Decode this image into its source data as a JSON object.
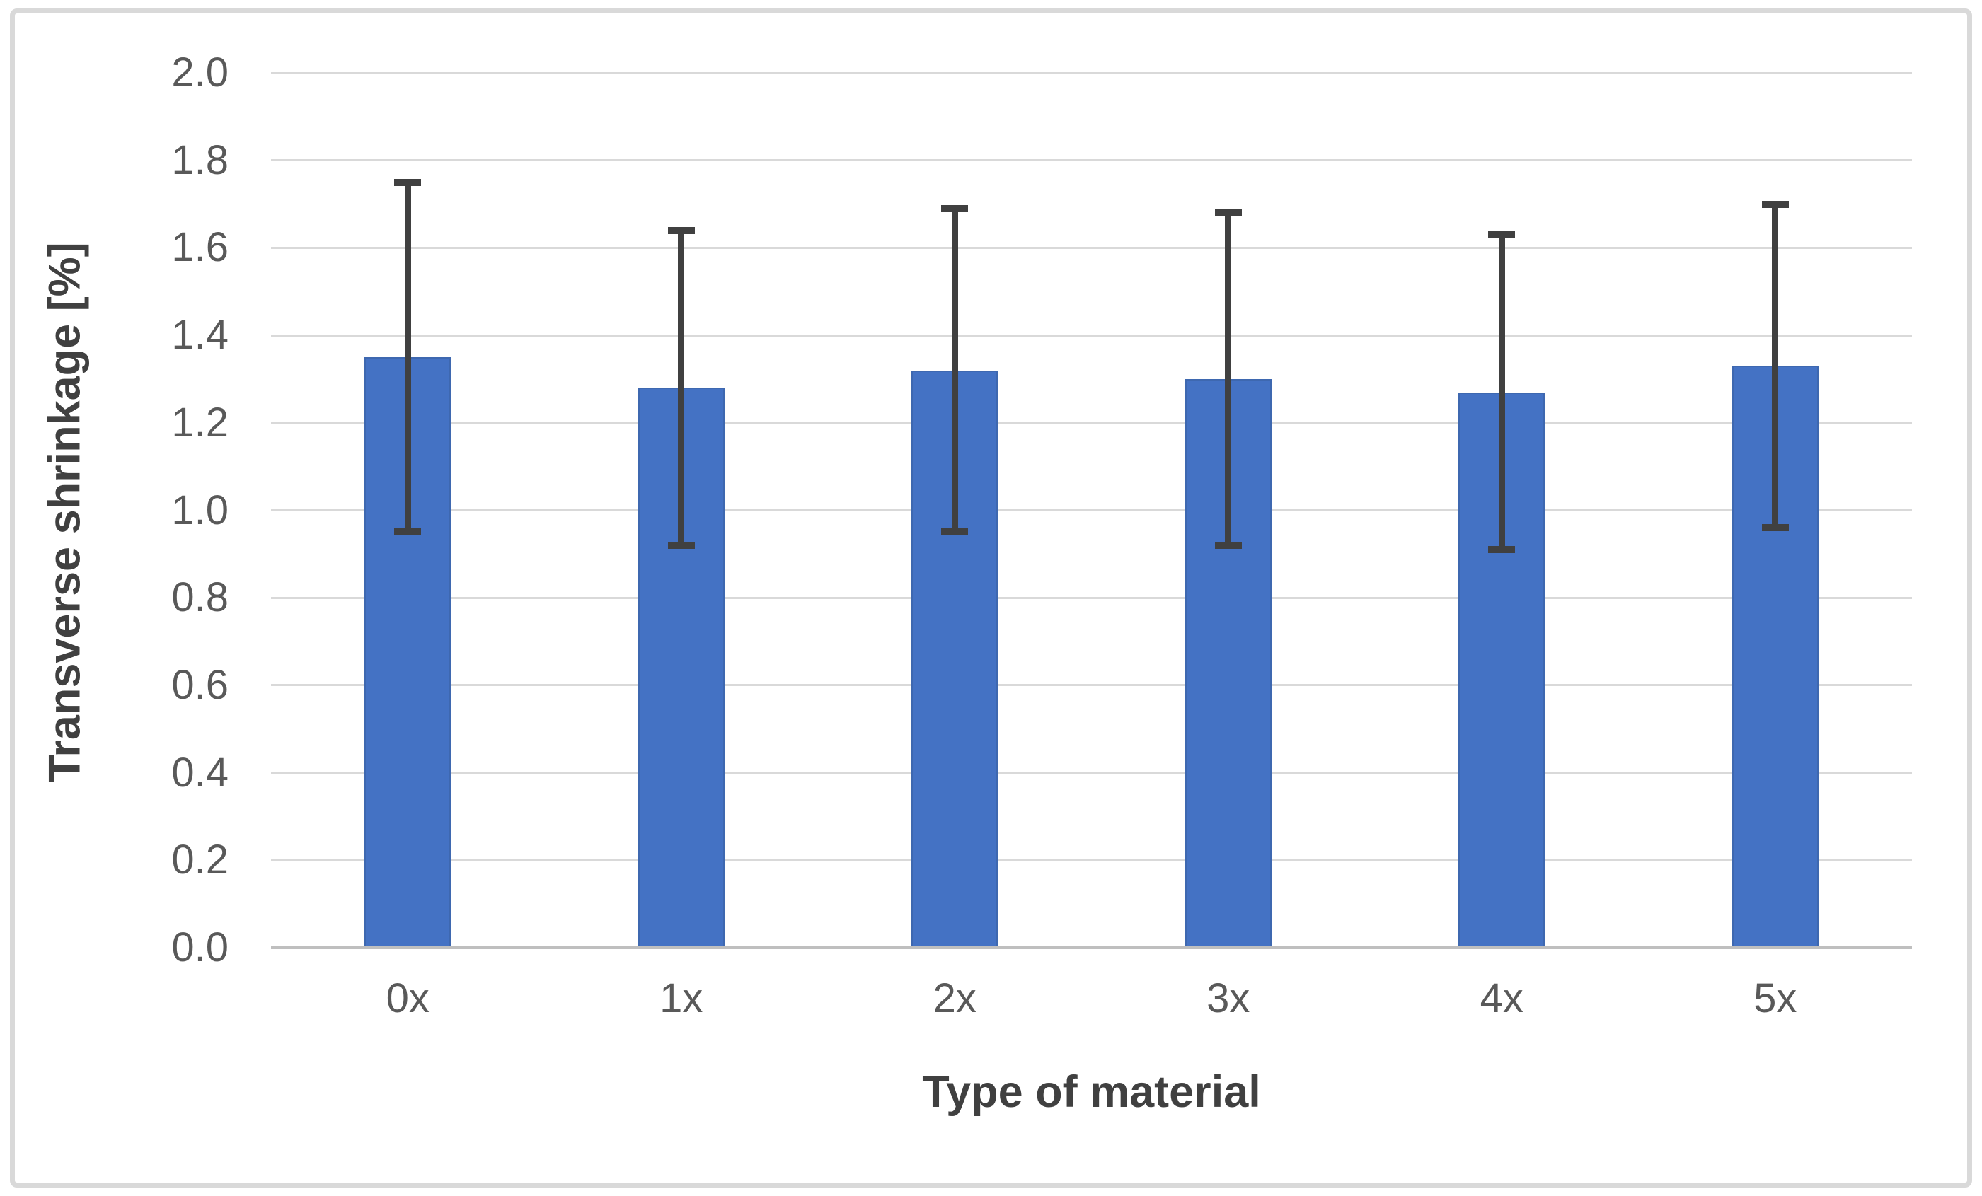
{
  "chart_data": {
    "type": "bar",
    "title": "",
    "categories": [
      "0x",
      "1x",
      "2x",
      "3x",
      "4x",
      "5x"
    ],
    "values": [
      1.35,
      1.28,
      1.32,
      1.3,
      1.27,
      1.33
    ],
    "error_bars": {
      "upper": [
        1.75,
        1.64,
        1.69,
        1.68,
        1.63,
        1.7
      ],
      "lower": [
        0.95,
        0.92,
        0.95,
        0.92,
        0.91,
        0.96
      ]
    },
    "xlabel": "Type of material",
    "ylabel": "Transverse shrinkage [%]",
    "ylim": [
      0.0,
      2.0
    ],
    "ytick_step": 0.2,
    "ytick_labels": [
      "0.0",
      "0.2",
      "0.4",
      "0.6",
      "0.8",
      "1.0",
      "1.2",
      "1.4",
      "1.6",
      "1.8",
      "2.0"
    ],
    "grid": "horizontal",
    "legend": "none",
    "colors": {
      "bar_fill": "#4472C4",
      "bar_edge": "#3E68B0",
      "error_bar": "#404040",
      "gridline": "#D9D9D9",
      "axis_line": "#BFBFBF",
      "tick_label": "#595959",
      "axis_title": "#404040",
      "frame_border": "#D9D9D9",
      "background": "#FFFFFF"
    }
  }
}
